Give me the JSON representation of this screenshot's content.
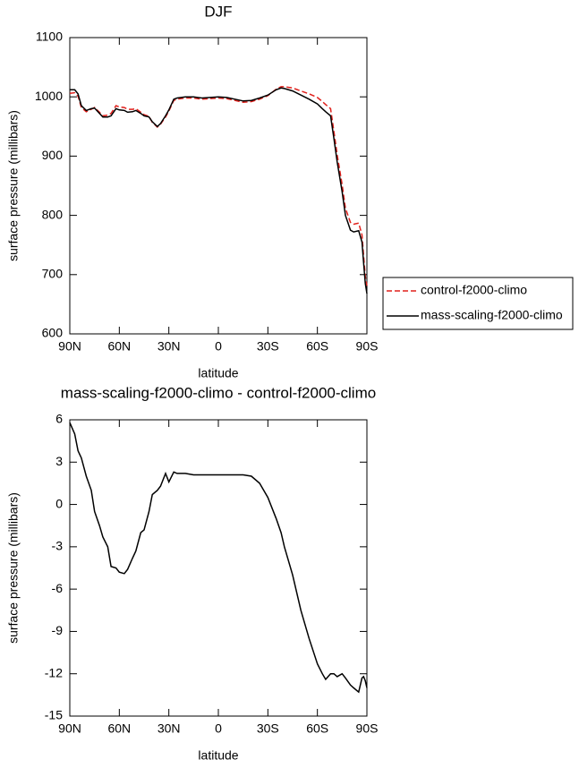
{
  "chart_data": [
    {
      "type": "line",
      "title": "DJF",
      "xlabel": "latitude",
      "ylabel": "surface pressure (millibars)",
      "x": [
        90,
        87,
        85,
        83,
        80,
        77,
        75,
        72,
        70,
        67,
        65,
        62,
        60,
        57,
        55,
        52,
        50,
        47,
        45,
        42,
        40,
        37,
        35,
        32,
        30,
        27,
        25,
        20,
        15,
        10,
        5,
        0,
        -5,
        -10,
        -15,
        -20,
        -25,
        -30,
        -35,
        -38,
        -40,
        -45,
        -50,
        -55,
        -60,
        -63,
        -65,
        -68,
        -70,
        -72,
        -75,
        -77,
        -80,
        -82,
        -85,
        -87,
        -88,
        -89,
        -90
      ],
      "xlim": [
        90,
        -90
      ],
      "xticks": [
        {
          "value": 90,
          "label": "90N"
        },
        {
          "value": 60,
          "label": "60N"
        },
        {
          "value": 30,
          "label": "30N"
        },
        0,
        {
          "value": -30,
          "label": "30S"
        },
        {
          "value": -60,
          "label": "60S"
        },
        {
          "value": -90,
          "label": "90S"
        }
      ],
      "ylim": [
        600,
        1100
      ],
      "yticks": [
        600,
        700,
        800,
        900,
        1000,
        1100
      ],
      "legend": "outside-right",
      "series": [
        {
          "name": "control-f2000-climo",
          "color": "#e0201b",
          "dashed": true,
          "values": [
            1006,
            1007,
            1001,
            982,
            975,
            979,
            982,
            974,
            968,
            969,
            972,
            985,
            983,
            982,
            979,
            979,
            980,
            974,
            970,
            967,
            957,
            949,
            954,
            966,
            976,
            994,
            996,
            998,
            998,
            996,
            997,
            998,
            997,
            994,
            991,
            992,
            996,
            1002,
            1013,
            1017,
            1017,
            1015,
            1010,
            1005,
            999,
            992,
            987,
            980,
            942,
            902,
            852,
            812,
            788,
            785,
            787,
            767,
            732,
            697,
            681
          ]
        },
        {
          "name": "mass-scaling-f2000-climo",
          "color": "#000000",
          "dashed": false,
          "values": [
            1012,
            1012,
            1005,
            985,
            977,
            980,
            981,
            972,
            966,
            966,
            968,
            980,
            978,
            977,
            974,
            975,
            977,
            972,
            968,
            966,
            958,
            950,
            955,
            968,
            978,
            996,
            998,
            1000,
            1000,
            998,
            999,
            1000,
            999,
            996,
            993,
            994,
            998,
            1003,
            1012,
            1015,
            1014,
            1010,
            1003,
            996,
            988,
            980,
            975,
            968,
            930,
            890,
            840,
            800,
            775,
            772,
            774,
            755,
            720,
            685,
            668
          ]
        }
      ]
    },
    {
      "type": "line",
      "title": "mass-scaling-f2000-climo - control-f2000-climo",
      "xlabel": "latitude",
      "ylabel": "surface pressure (millibars)",
      "x": [
        90,
        87,
        85,
        83,
        80,
        77,
        75,
        72,
        70,
        67,
        65,
        62,
        60,
        57,
        55,
        52,
        50,
        47,
        45,
        42,
        40,
        37,
        35,
        32,
        30,
        27,
        25,
        20,
        15,
        10,
        5,
        0,
        -5,
        -10,
        -15,
        -20,
        -25,
        -30,
        -35,
        -38,
        -40,
        -45,
        -50,
        -55,
        -60,
        -63,
        -65,
        -68,
        -70,
        -72,
        -75,
        -77,
        -80,
        -82,
        -85,
        -87,
        -88,
        -89,
        -90
      ],
      "xlim": [
        90,
        -90
      ],
      "xticks": [
        {
          "value": 90,
          "label": "90N"
        },
        {
          "value": 60,
          "label": "60N"
        },
        {
          "value": 30,
          "label": "30N"
        },
        0,
        {
          "value": -30,
          "label": "30S"
        },
        {
          "value": -60,
          "label": "60S"
        },
        {
          "value": -90,
          "label": "90S"
        }
      ],
      "ylim": [
        -15,
        6
      ],
      "yticks": [
        -15,
        -12,
        -9,
        -6,
        -3,
        0,
        3,
        6
      ],
      "color": "#000000",
      "values": [
        5.8,
        5,
        3.8,
        3.3,
        2,
        1,
        -0.5,
        -1.5,
        -2.3,
        -3,
        -4.4,
        -4.5,
        -4.8,
        -4.9,
        -4.6,
        -3.8,
        -3.3,
        -2,
        -1.8,
        -0.5,
        0.7,
        1,
        1.3,
        2.2,
        1.6,
        2.3,
        2.2,
        2.2,
        2.1,
        2.1,
        2.1,
        2.1,
        2.1,
        2.1,
        2.1,
        2,
        1.5,
        0.5,
        -1,
        -2,
        -3,
        -5,
        -7.5,
        -9.5,
        -11.3,
        -12,
        -12.4,
        -12,
        -12,
        -12.2,
        -12,
        -12.3,
        -12.8,
        -13,
        -13.3,
        -12.3,
        -12.2,
        -12.5,
        -13
      ]
    }
  ]
}
